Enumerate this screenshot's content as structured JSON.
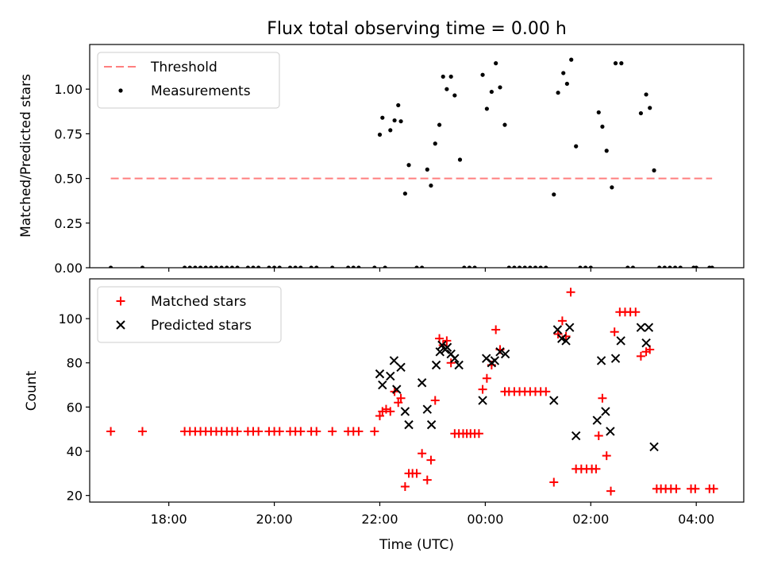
{
  "chart_data": [
    {
      "type": "scatter",
      "title": "Flux total observing time = 0.00 h",
      "ylabel": "Matched/Predicted stars",
      "xlabel": "",
      "x_unit": "hours since 00:00 UTC",
      "xlim": [
        -7.5,
        4.9
      ],
      "ylim": [
        0,
        1.25
      ],
      "yticks": [
        "0.00",
        "0.25",
        "0.50",
        "0.75",
        "1.00"
      ],
      "legend_position": "top-left",
      "threshold": {
        "name": "Threshold",
        "value": 0.5,
        "x_range": [
          -7.1,
          4.3
        ],
        "color": "#ff7f7f"
      },
      "series": [
        {
          "name": "Measurements",
          "color": "#000000",
          "marker": "dot",
          "points": [
            [
              -7.1,
              0
            ],
            [
              -6.5,
              0
            ],
            [
              -5.7,
              0
            ],
            [
              -5.6,
              0
            ],
            [
              -5.5,
              0
            ],
            [
              -5.4,
              0
            ],
            [
              -5.3,
              0
            ],
            [
              -5.2,
              0
            ],
            [
              -5.1,
              0
            ],
            [
              -5.0,
              0
            ],
            [
              -4.9,
              0
            ],
            [
              -4.8,
              0
            ],
            [
              -4.7,
              0
            ],
            [
              -4.5,
              0
            ],
            [
              -4.4,
              0
            ],
            [
              -4.3,
              0
            ],
            [
              -4.1,
              0
            ],
            [
              -4.0,
              0
            ],
            [
              -3.9,
              0
            ],
            [
              -3.7,
              0
            ],
            [
              -3.6,
              0
            ],
            [
              -3.5,
              0
            ],
            [
              -3.3,
              0
            ],
            [
              -3.2,
              0
            ],
            [
              -2.9,
              0
            ],
            [
              -2.6,
              0
            ],
            [
              -2.5,
              0
            ],
            [
              -2.4,
              0
            ],
            [
              -2.1,
              0
            ],
            [
              -1.9,
              0
            ],
            [
              -2.0,
              0.745
            ],
            [
              -1.95,
              0.84
            ],
            [
              -1.8,
              0.77
            ],
            [
              -1.72,
              0.825
            ],
            [
              -1.65,
              0.91
            ],
            [
              -1.6,
              0.82
            ],
            [
              -1.52,
              0.415
            ],
            [
              -1.45,
              0.575
            ],
            [
              -1.3,
              0
            ],
            [
              -1.2,
              0
            ],
            [
              -1.1,
              0.55
            ],
            [
              -1.03,
              0.46
            ],
            [
              -0.95,
              0.695
            ],
            [
              -0.87,
              0.8
            ],
            [
              -0.8,
              1.07
            ],
            [
              -0.73,
              1.0
            ],
            [
              -0.65,
              1.07
            ],
            [
              -0.58,
              0.965
            ],
            [
              -0.48,
              0.605
            ],
            [
              -0.4,
              0
            ],
            [
              -0.3,
              0
            ],
            [
              -0.2,
              0
            ],
            [
              -0.05,
              1.08
            ],
            [
              0.03,
              0.89
            ],
            [
              0.12,
              0.985
            ],
            [
              0.2,
              1.145
            ],
            [
              0.28,
              1.01
            ],
            [
              0.37,
              0.8
            ],
            [
              0.45,
              0
            ],
            [
              0.55,
              0
            ],
            [
              0.65,
              0
            ],
            [
              0.75,
              0
            ],
            [
              0.85,
              0
            ],
            [
              0.95,
              0
            ],
            [
              1.05,
              0
            ],
            [
              1.15,
              0
            ],
            [
              1.3,
              0.41
            ],
            [
              1.38,
              0.98
            ],
            [
              1.48,
              1.09
            ],
            [
              1.55,
              1.03
            ],
            [
              1.63,
              1.165
            ],
            [
              1.72,
              0.68
            ],
            [
              1.8,
              0
            ],
            [
              1.9,
              0
            ],
            [
              2.0,
              0
            ],
            [
              2.15,
              0.87
            ],
            [
              2.22,
              0.79
            ],
            [
              2.3,
              0.655
            ],
            [
              2.4,
              0.45
            ],
            [
              2.47,
              1.145
            ],
            [
              2.58,
              1.145
            ],
            [
              2.7,
              0
            ],
            [
              2.8,
              0
            ],
            [
              2.95,
              0.865
            ],
            [
              3.05,
              0.97
            ],
            [
              3.12,
              0.895
            ],
            [
              3.2,
              0.545
            ],
            [
              3.3,
              0
            ],
            [
              3.4,
              0
            ],
            [
              3.5,
              0
            ],
            [
              3.6,
              0
            ],
            [
              3.7,
              0
            ],
            [
              3.95,
              0
            ],
            [
              4.0,
              0
            ],
            [
              4.25,
              0
            ],
            [
              4.3,
              0
            ]
          ]
        }
      ]
    },
    {
      "type": "scatter",
      "title": "",
      "ylabel": "Count",
      "xlabel": "Time (UTC)",
      "x_unit": "hours since 00:00 UTC",
      "xlim": [
        -7.5,
        4.9
      ],
      "ylim": [
        17,
        118
      ],
      "yticks": [
        "20",
        "40",
        "60",
        "80",
        "100"
      ],
      "xticks": [
        "18:00",
        "20:00",
        "22:00",
        "00:00",
        "02:00",
        "04:00"
      ],
      "legend_position": "top-left",
      "series": [
        {
          "name": "Matched stars",
          "color": "#ff0000",
          "marker": "plus",
          "points": [
            [
              -7.1,
              49
            ],
            [
              -6.5,
              49
            ],
            [
              -5.7,
              49
            ],
            [
              -5.6,
              49
            ],
            [
              -5.5,
              49
            ],
            [
              -5.4,
              49
            ],
            [
              -5.3,
              49
            ],
            [
              -5.2,
              49
            ],
            [
              -5.1,
              49
            ],
            [
              -5.0,
              49
            ],
            [
              -4.9,
              49
            ],
            [
              -4.8,
              49
            ],
            [
              -4.7,
              49
            ],
            [
              -4.5,
              49
            ],
            [
              -4.4,
              49
            ],
            [
              -4.3,
              49
            ],
            [
              -4.1,
              49
            ],
            [
              -4.0,
              49
            ],
            [
              -3.9,
              49
            ],
            [
              -3.7,
              49
            ],
            [
              -3.6,
              49
            ],
            [
              -3.5,
              49
            ],
            [
              -3.3,
              49
            ],
            [
              -3.2,
              49
            ],
            [
              -2.9,
              49
            ],
            [
              -2.6,
              49
            ],
            [
              -2.5,
              49
            ],
            [
              -2.4,
              49
            ],
            [
              -2.1,
              49
            ],
            [
              -2.0,
              56
            ],
            [
              -1.95,
              58
            ],
            [
              -1.88,
              59
            ],
            [
              -1.8,
              58
            ],
            [
              -1.72,
              67
            ],
            [
              -1.65,
              62
            ],
            [
              -1.6,
              64
            ],
            [
              -1.52,
              24
            ],
            [
              -1.45,
              30
            ],
            [
              -1.38,
              30
            ],
            [
              -1.3,
              30
            ],
            [
              -1.2,
              39
            ],
            [
              -1.1,
              27
            ],
            [
              -1.03,
              36
            ],
            [
              -0.95,
              63
            ],
            [
              -0.87,
              91
            ],
            [
              -0.8,
              88
            ],
            [
              -0.73,
              90
            ],
            [
              -0.65,
              80
            ],
            [
              -0.58,
              48
            ],
            [
              -0.5,
              48
            ],
            [
              -0.42,
              48
            ],
            [
              -0.35,
              48
            ],
            [
              -0.28,
              48
            ],
            [
              -0.2,
              48
            ],
            [
              -0.12,
              48
            ],
            [
              -0.05,
              68
            ],
            [
              0.03,
              73
            ],
            [
              0.12,
              79
            ],
            [
              0.2,
              95
            ],
            [
              0.28,
              86
            ],
            [
              0.37,
              67
            ],
            [
              0.45,
              67
            ],
            [
              0.55,
              67
            ],
            [
              0.65,
              67
            ],
            [
              0.75,
              67
            ],
            [
              0.85,
              67
            ],
            [
              0.95,
              67
            ],
            [
              1.05,
              67
            ],
            [
              1.15,
              67
            ],
            [
              1.3,
              26
            ],
            [
              1.38,
              93
            ],
            [
              1.46,
              99
            ],
            [
              1.53,
              92
            ],
            [
              1.62,
              112
            ],
            [
              1.72,
              32
            ],
            [
              1.82,
              32
            ],
            [
              1.92,
              32
            ],
            [
              2.02,
              32
            ],
            [
              2.1,
              32
            ],
            [
              2.15,
              47
            ],
            [
              2.22,
              64
            ],
            [
              2.3,
              38
            ],
            [
              2.38,
              22
            ],
            [
              2.45,
              94
            ],
            [
              2.55,
              103
            ],
            [
              2.65,
              103
            ],
            [
              2.75,
              103
            ],
            [
              2.85,
              103
            ],
            [
              2.95,
              83
            ],
            [
              3.05,
              85
            ],
            [
              3.12,
              86
            ],
            [
              3.25,
              23
            ],
            [
              3.33,
              23
            ],
            [
              3.42,
              23
            ],
            [
              3.52,
              23
            ],
            [
              3.62,
              23
            ],
            [
              3.9,
              23
            ],
            [
              3.98,
              23
            ],
            [
              4.25,
              23
            ],
            [
              4.33,
              23
            ]
          ]
        },
        {
          "name": "Predicted stars",
          "color": "#000000",
          "marker": "x",
          "points": [
            [
              -2.0,
              75
            ],
            [
              -1.95,
              70
            ],
            [
              -1.8,
              74
            ],
            [
              -1.73,
              81
            ],
            [
              -1.68,
              68
            ],
            [
              -1.6,
              78
            ],
            [
              -1.52,
              58
            ],
            [
              -1.45,
              52
            ],
            [
              -1.2,
              71
            ],
            [
              -1.1,
              59
            ],
            [
              -1.02,
              52
            ],
            [
              -0.93,
              79
            ],
            [
              -0.86,
              85
            ],
            [
              -0.82,
              88
            ],
            [
              -0.76,
              86
            ],
            [
              -0.72,
              87
            ],
            [
              -0.65,
              84
            ],
            [
              -0.58,
              82
            ],
            [
              -0.5,
              79
            ],
            [
              -0.05,
              63
            ],
            [
              0.02,
              82
            ],
            [
              0.12,
              80
            ],
            [
              0.18,
              81
            ],
            [
              0.28,
              85
            ],
            [
              0.38,
              84
            ],
            [
              1.3,
              63
            ],
            [
              1.37,
              95
            ],
            [
              1.45,
              91
            ],
            [
              1.53,
              90
            ],
            [
              1.6,
              96
            ],
            [
              1.72,
              47
            ],
            [
              2.12,
              54
            ],
            [
              2.2,
              81
            ],
            [
              2.28,
              58
            ],
            [
              2.37,
              49
            ],
            [
              2.47,
              82
            ],
            [
              2.57,
              90
            ],
            [
              2.95,
              96
            ],
            [
              3.05,
              89
            ],
            [
              3.1,
              96
            ],
            [
              3.2,
              42
            ]
          ]
        }
      ]
    }
  ]
}
